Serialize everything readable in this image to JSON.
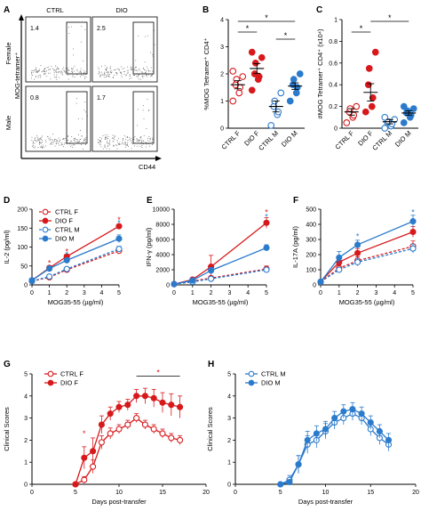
{
  "panels": {
    "A": {
      "label": "A",
      "columns": [
        "CTRL",
        "DIO"
      ],
      "rows": [
        "Female",
        "Male"
      ],
      "y_axis": "MOG-tetramer⁺",
      "x_axis": "CD44",
      "percents": [
        [
          "1.4",
          "2.5"
        ],
        [
          "0.8",
          "1.7"
        ]
      ]
    }
  },
  "colors": {
    "red": "#d7191c",
    "blue": "#2b7bcc"
  },
  "chart_data": [
    {
      "id": "B",
      "label": "B",
      "type": "scatter",
      "ylabel": "%MOG Tetramer⁺ CD4⁺",
      "ylim": [
        0,
        4
      ],
      "yticks": [
        0,
        1,
        2,
        3,
        4
      ],
      "categories": [
        "CTRL F",
        "DIO F",
        "CTRL M",
        "DIO M"
      ],
      "points": [
        [
          1.0,
          1.3,
          1.5,
          1.6,
          1.8,
          1.9,
          2.1
        ],
        [
          1.4,
          1.8,
          1.9,
          2.0,
          2.4,
          2.6,
          2.8
        ],
        [
          0.1,
          0.5,
          0.6,
          0.8,
          1.0,
          1.3
        ],
        [
          1.0,
          1.3,
          1.5,
          1.6,
          1.8,
          2.0
        ]
      ],
      "means": [
        1.6,
        2.2,
        0.8,
        1.55
      ],
      "sems": [
        0.15,
        0.18,
        0.2,
        0.12
      ],
      "significance": [
        {
          "from": 0,
          "to": 1,
          "text": "*"
        },
        {
          "from": 2,
          "to": 3,
          "text": "*"
        },
        {
          "from": 0,
          "to": 3,
          "text": "*"
        }
      ]
    },
    {
      "id": "C",
      "label": "C",
      "type": "scatter",
      "ylabel": "#MOG Tetramer⁺ CD4⁺ (x10⁴)",
      "ylim": [
        0,
        1
      ],
      "yticks": [
        0,
        0.2,
        0.4,
        0.6,
        0.8,
        1.0
      ],
      "categories": [
        "CTRL F",
        "DIO F",
        "CTRL M",
        "DIO M"
      ],
      "points": [
        [
          0.05,
          0.1,
          0.12,
          0.15,
          0.18,
          0.2
        ],
        [
          0.15,
          0.2,
          0.28,
          0.4,
          0.55,
          0.7
        ],
        [
          0.0,
          0.02,
          0.04,
          0.05,
          0.06,
          0.08,
          0.1
        ],
        [
          0.05,
          0.1,
          0.12,
          0.14,
          0.16,
          0.18,
          0.2
        ]
      ],
      "means": [
        0.15,
        0.33,
        0.06,
        0.14
      ],
      "sems": [
        0.03,
        0.08,
        0.02,
        0.02
      ],
      "significance": [
        {
          "from": 0,
          "to": 1,
          "text": "*"
        },
        {
          "from": 1,
          "to": 3,
          "text": "*"
        }
      ]
    },
    {
      "id": "D",
      "label": "D",
      "type": "line",
      "ylabel": "IL-2 (pg/ml)",
      "xlabel": "MOG35-55 (µg/ml)",
      "x": [
        0,
        1,
        2,
        5
      ],
      "xticks": [
        0,
        1,
        2,
        3,
        4,
        5
      ],
      "ylim": [
        0,
        200
      ],
      "yticks": [
        0,
        50,
        100,
        150,
        200
      ],
      "legend": "top-left",
      "series": [
        {
          "name": "CTRL F",
          "color": "red",
          "open": true,
          "dashed": true,
          "values": [
            10,
            20,
            40,
            90
          ],
          "err": [
            3,
            3,
            4,
            8
          ]
        },
        {
          "name": "DIO F",
          "color": "red",
          "open": false,
          "dashed": false,
          "values": [
            12,
            45,
            75,
            155
          ],
          "err": [
            3,
            5,
            6,
            6
          ]
        },
        {
          "name": "CTRL M",
          "color": "blue",
          "open": true,
          "dashed": true,
          "values": [
            10,
            22,
            42,
            95
          ],
          "err": [
            3,
            3,
            4,
            7
          ]
        },
        {
          "name": "DIO M",
          "color": "blue",
          "open": false,
          "dashed": false,
          "values": [
            12,
            43,
            65,
            122
          ],
          "err": [
            3,
            4,
            5,
            10
          ]
        }
      ],
      "stars": [
        {
          "x": 1,
          "y": 58,
          "color": "red"
        },
        {
          "x": 2,
          "y": 88,
          "color": "red"
        },
        {
          "x": 2,
          "y": 80,
          "color": "blue"
        },
        {
          "x": 5,
          "y": 172,
          "color": "red"
        },
        {
          "x": 5,
          "y": 164,
          "color": "blue"
        }
      ]
    },
    {
      "id": "E",
      "label": "E",
      "type": "line",
      "ylabel": "IFN-γ (pg/ml)",
      "xlabel": "MOG35-55 (µg/ml)",
      "x": [
        0,
        1,
        2,
        5
      ],
      "xticks": [
        0,
        1,
        2,
        3,
        4,
        5
      ],
      "ylim": [
        0,
        10000
      ],
      "yticks": [
        0,
        2000,
        4000,
        6000,
        8000,
        10000
      ],
      "series": [
        {
          "name": "CTRL F",
          "color": "red",
          "open": true,
          "dashed": true,
          "values": [
            100,
            500,
            900,
            2100
          ],
          "err": [
            50,
            100,
            200,
            400
          ]
        },
        {
          "name": "DIO F",
          "color": "red",
          "open": false,
          "dashed": false,
          "values": [
            100,
            700,
            2400,
            8200
          ],
          "err": [
            50,
            200,
            1500,
            700
          ]
        },
        {
          "name": "CTRL M",
          "color": "blue",
          "open": true,
          "dashed": true,
          "values": [
            100,
            400,
            800,
            2000
          ],
          "err": [
            50,
            100,
            200,
            300
          ]
        },
        {
          "name": "DIO M",
          "color": "blue",
          "open": false,
          "dashed": false,
          "values": [
            100,
            600,
            1900,
            4900
          ],
          "err": [
            50,
            150,
            400,
            400
          ]
        }
      ],
      "stars": [
        {
          "x": 5,
          "y": 9600,
          "color": "red"
        },
        {
          "x": 5,
          "y": 9000,
          "color": "blue"
        }
      ]
    },
    {
      "id": "F",
      "label": "F",
      "type": "line",
      "ylabel": "IL-17A (pg/ml)",
      "xlabel": "MOG35-55 (µg/ml)",
      "x": [
        0,
        1,
        2,
        5
      ],
      "xticks": [
        0,
        1,
        2,
        3,
        4,
        5
      ],
      "ylim": [
        0,
        500
      ],
      "yticks": [
        0,
        100,
        200,
        300,
        400,
        500
      ],
      "series": [
        {
          "name": "CTRL F",
          "color": "red",
          "open": true,
          "dashed": true,
          "values": [
            20,
            110,
            160,
            255
          ],
          "err": [
            8,
            20,
            25,
            35
          ]
        },
        {
          "name": "DIO F",
          "color": "red",
          "open": false,
          "dashed": false,
          "values": [
            20,
            150,
            210,
            350
          ],
          "err": [
            8,
            30,
            30,
            35
          ]
        },
        {
          "name": "CTRL M",
          "color": "blue",
          "open": true,
          "dashed": true,
          "values": [
            20,
            100,
            150,
            240
          ],
          "err": [
            8,
            15,
            25,
            30
          ]
        },
        {
          "name": "DIO M",
          "color": "blue",
          "open": false,
          "dashed": false,
          "values": [
            20,
            180,
            265,
            420
          ],
          "err": [
            8,
            40,
            30,
            40
          ]
        }
      ],
      "stars": [
        {
          "x": 2,
          "y": 320,
          "color": "blue"
        },
        {
          "x": 5,
          "y": 480,
          "color": "blue"
        }
      ]
    },
    {
      "id": "G",
      "label": "G",
      "type": "line",
      "ylabel": "Clinical Scores",
      "xlabel": "Days post-transfer",
      "xlim": [
        0,
        20
      ],
      "xticks": [
        0,
        5,
        10,
        15,
        20
      ],
      "ylim": [
        0,
        5
      ],
      "yticks": [
        0,
        1,
        2,
        3,
        4,
        5
      ],
      "legend": "top-left",
      "x": [
        5,
        6,
        7,
        8,
        9,
        10,
        11,
        12,
        13,
        14,
        15,
        16,
        17
      ],
      "series": [
        {
          "name": "CTRL F",
          "color": "red",
          "open": true,
          "dashed": false,
          "values": [
            0,
            0.2,
            0.8,
            1.9,
            2.3,
            2.5,
            2.7,
            3.0,
            2.7,
            2.5,
            2.3,
            2.1,
            2.0
          ],
          "err": [
            0,
            0.15,
            0.3,
            0.3,
            0.25,
            0.2,
            0.2,
            0.2,
            0.2,
            0.2,
            0.2,
            0.2,
            0.2
          ]
        },
        {
          "name": "DIO F",
          "color": "red",
          "open": false,
          "dashed": false,
          "values": [
            0,
            1.2,
            1.5,
            2.7,
            3.2,
            3.5,
            3.6,
            4.0,
            4.0,
            3.9,
            3.7,
            3.6,
            3.5
          ],
          "err": [
            0,
            0.5,
            0.6,
            0.4,
            0.3,
            0.25,
            0.25,
            0.3,
            0.35,
            0.4,
            0.45,
            0.5,
            0.5
          ]
        }
      ],
      "sig_bar": {
        "from": 12,
        "to": 17,
        "y": 4.9,
        "text": "*",
        "color": "red"
      },
      "stars": [
        {
          "x": 6,
          "y": 2.3,
          "color": "red"
        }
      ]
    },
    {
      "id": "H",
      "label": "H",
      "type": "line",
      "ylabel": "Clinical Scores",
      "xlabel": "Days post-transfer",
      "xlim": [
        0,
        20
      ],
      "xticks": [
        0,
        5,
        10,
        15,
        20
      ],
      "ylim": [
        0,
        5
      ],
      "yticks": [
        0,
        1,
        2,
        3,
        4,
        5
      ],
      "legend": "top-left",
      "x": [
        5,
        6,
        7,
        8,
        9,
        10,
        11,
        12,
        13,
        14,
        15,
        16,
        17
      ],
      "series": [
        {
          "name": "CTRL M",
          "color": "blue",
          "open": true,
          "dashed": false,
          "values": [
            0,
            0.2,
            0.9,
            1.8,
            2.0,
            2.4,
            2.8,
            3.0,
            3.2,
            3.0,
            2.5,
            2.1,
            1.8
          ],
          "err": [
            0,
            0.2,
            0.4,
            0.4,
            0.35,
            0.35,
            0.3,
            0.3,
            0.3,
            0.3,
            0.3,
            0.3,
            0.3
          ]
        },
        {
          "name": "DIO M",
          "color": "blue",
          "open": false,
          "dashed": false,
          "values": [
            0,
            0.1,
            0.9,
            2.0,
            2.3,
            2.5,
            3.0,
            3.3,
            3.4,
            3.2,
            2.8,
            2.4,
            2.0
          ],
          "err": [
            0,
            0.1,
            0.4,
            0.4,
            0.35,
            0.35,
            0.3,
            0.3,
            0.3,
            0.3,
            0.3,
            0.3,
            0.3
          ]
        }
      ]
    }
  ]
}
